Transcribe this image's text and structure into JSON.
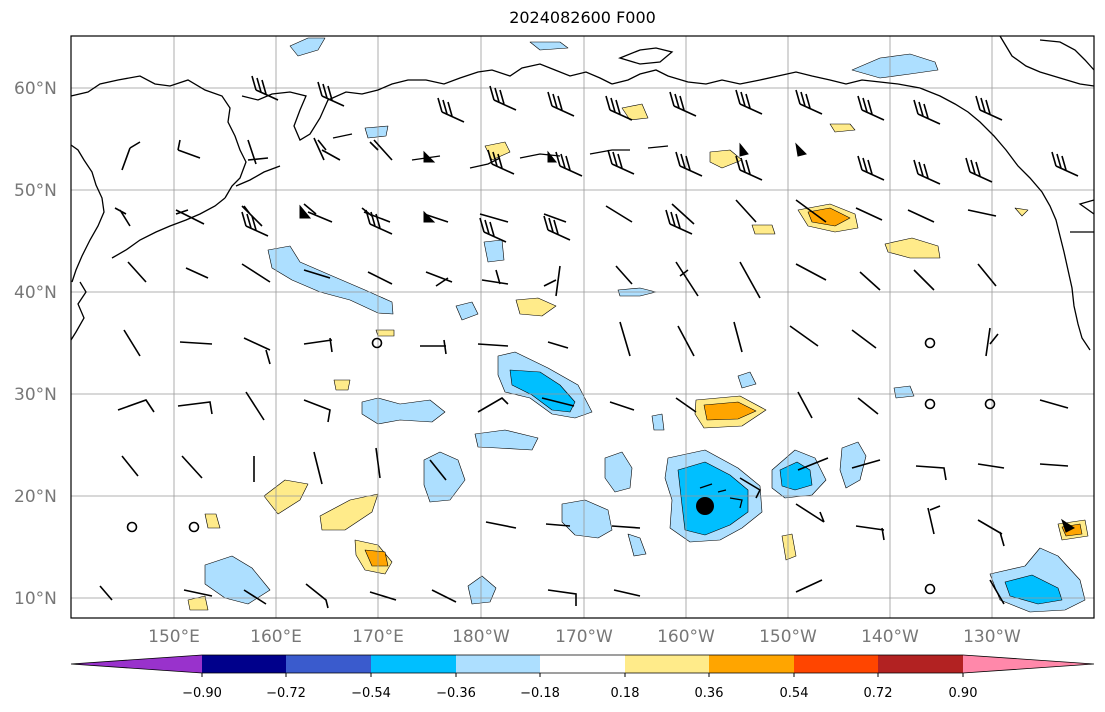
{
  "title": "2024082600 F000",
  "map": {
    "lat_labels": [
      "60°N",
      "50°N",
      "40°N",
      "30°N",
      "20°N",
      "10°N"
    ],
    "lon_labels": [
      "150°E",
      "160°E",
      "170°E",
      "180°W",
      "170°W",
      "160°W",
      "150°W",
      "140°W",
      "130°W"
    ],
    "grid": true,
    "colors": {
      "coastline": "#000000",
      "grid": "#999999"
    }
  },
  "colorbar": {
    "ticks": [
      "−0.90",
      "−0.72",
      "−0.54",
      "−0.36",
      "−0.18",
      "0.18",
      "0.36",
      "0.54",
      "0.72",
      "0.90"
    ],
    "colors": [
      "#9932CC",
      "#00008B",
      "#3A5BCD",
      "#00BFFF",
      "#ADDFFF",
      "#FFFFFF",
      "#FFEB8A",
      "#FFA500",
      "#FF4500",
      "#B22222",
      "#FF88AA"
    ],
    "extend": "both"
  },
  "markers": {
    "storm_center": "filled-black-circle",
    "calm": "open-circle",
    "wind_symbol": "wind-barbs"
  }
}
